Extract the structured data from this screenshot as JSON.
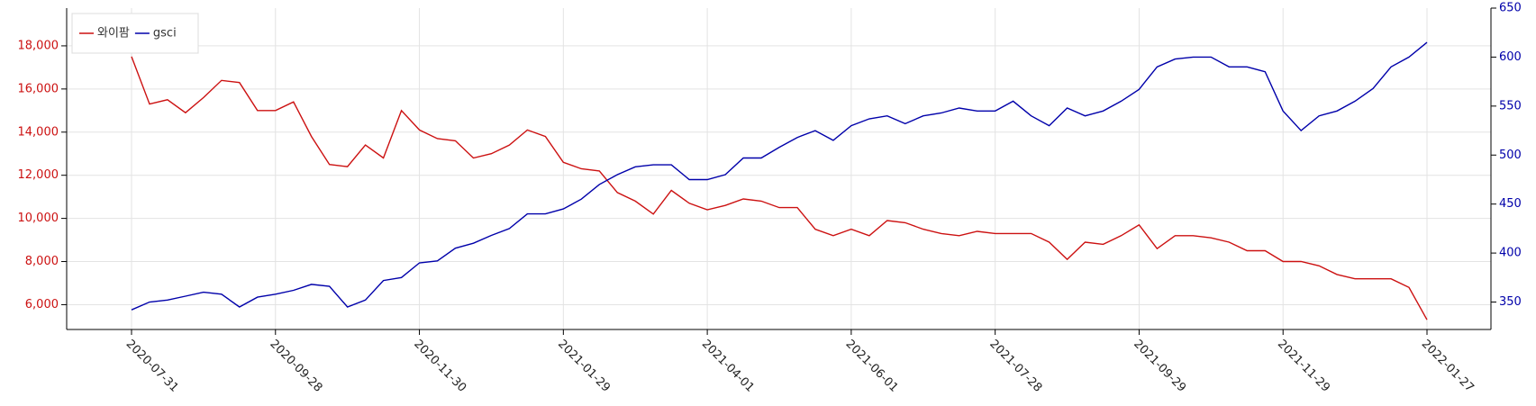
{
  "chart_data": {
    "type": "line",
    "categories": [
      "2020-07-31",
      null,
      null,
      null,
      null,
      null,
      null,
      null,
      "2020-09-28",
      null,
      null,
      null,
      null,
      null,
      null,
      null,
      "2020-11-30",
      null,
      null,
      null,
      null,
      null,
      null,
      null,
      "2021-01-29",
      null,
      null,
      null,
      null,
      null,
      null,
      null,
      "2021-04-01",
      null,
      null,
      null,
      null,
      null,
      null,
      null,
      "2021-06-01",
      null,
      null,
      null,
      null,
      null,
      null,
      null,
      "2021-07-28",
      null,
      null,
      null,
      null,
      null,
      null,
      null,
      "2021-09-29",
      null,
      null,
      null,
      null,
      null,
      null,
      null,
      "2021-11-29",
      null,
      null,
      null,
      null,
      null,
      null,
      null,
      "2022-01-27"
    ],
    "series": [
      {
        "name": "와이팜",
        "color": "#cc1111",
        "axis": "y",
        "values": [
          17500,
          15300,
          15500,
          14900,
          15600,
          16400,
          16300,
          15000,
          15000,
          15400,
          13800,
          12500,
          12400,
          13400,
          12800,
          15000,
          14100,
          13700,
          13600,
          12800,
          13000,
          13400,
          14100,
          13800,
          12600,
          12300,
          12200,
          11200,
          10800,
          10200,
          11300,
          10700,
          10400,
          10600,
          10900,
          10800,
          10500,
          10500,
          9500,
          9200,
          9500,
          9200,
          9900,
          9800,
          9500,
          9300,
          9200,
          9400,
          9300,
          9300,
          9300,
          8900,
          8100,
          8900,
          8800,
          9200,
          9700,
          8600,
          9200,
          9200,
          9100,
          8900,
          8500,
          8500,
          8000,
          8000,
          7800,
          7400,
          7200,
          7200,
          7200,
          6800,
          5300
        ]
      },
      {
        "name": "gsci",
        "color": "#0000aa",
        "axis": "y2",
        "values": [
          342,
          350,
          352,
          356,
          360,
          358,
          345,
          355,
          358,
          362,
          368,
          366,
          345,
          352,
          372,
          375,
          390,
          392,
          405,
          410,
          418,
          425,
          440,
          440,
          445,
          455,
          470,
          480,
          488,
          490,
          490,
          475,
          475,
          480,
          497,
          497,
          508,
          518,
          525,
          515,
          530,
          537,
          540,
          532,
          540,
          543,
          548,
          545,
          545,
          555,
          540,
          530,
          548,
          540,
          545,
          555,
          567,
          590,
          598,
          600,
          600,
          590,
          590,
          585,
          545,
          525,
          540,
          545,
          555,
          568,
          590,
          600,
          615
        ]
      }
    ],
    "ylim": [
      4850,
      19750
    ],
    "yticks": [
      {
        "value": 6000,
        "label": "6,000"
      },
      {
        "value": 8000,
        "label": "8,000"
      },
      {
        "value": 10000,
        "label": "10,000"
      },
      {
        "value": 12000,
        "label": "12,000"
      },
      {
        "value": 14000,
        "label": "14,000"
      },
      {
        "value": 16000,
        "label": "16,000"
      },
      {
        "value": 18000,
        "label": "18,000"
      }
    ],
    "y2lim": [
      322,
      650
    ],
    "y2ticks": [
      350,
      400,
      450,
      500,
      550,
      600,
      650
    ],
    "grid": true,
    "legend": "upper left"
  }
}
